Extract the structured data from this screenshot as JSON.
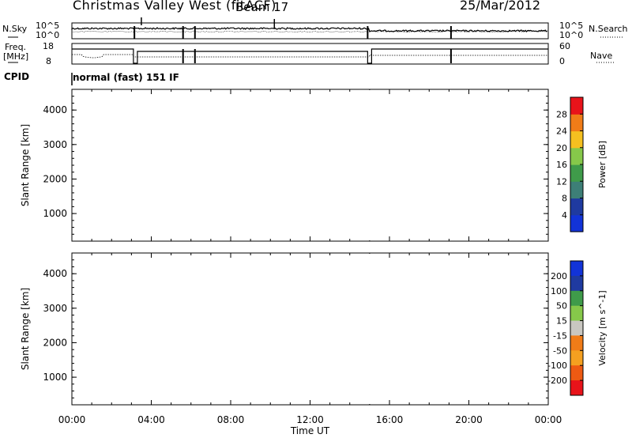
{
  "header": {
    "title": "Christmas Valley West (fitACF)",
    "beam": "Beam 17",
    "date": "25/Mar/2012"
  },
  "panels": {
    "nsky": {
      "label": "N.Sky",
      "ticks": [
        "10^5",
        "10^0"
      ]
    },
    "nsearch": {
      "label": "N.Search",
      "ticks": [
        "10^5",
        "10^0"
      ]
    },
    "freq": {
      "label_line1": "Freq.",
      "label_line2": "[MHz]",
      "ticks": [
        "18",
        "8"
      ]
    },
    "nave": {
      "label": "Nave",
      "ticks": [
        "60",
        "0"
      ]
    },
    "cpid": {
      "label": "CPID",
      "mode": "normal (fast) 151 IF"
    }
  },
  "colors": {
    "red": "#e8131a",
    "orange": "#f07c18",
    "yellow": "#f5c020",
    "green_light": "#86c84a",
    "green": "#3f9b4a",
    "teal": "#3d7f77",
    "navy": "#1f3aa0",
    "blue": "#1233d8",
    "gray": "#c9c7c1"
  },
  "chart_data": [
    {
      "type": "heatmap",
      "title": "",
      "xlabel": "",
      "ylabel": "Slant Range [km]",
      "ylim": [
        200,
        4600
      ],
      "yticks": [
        "1000",
        "2000",
        "3000",
        "4000"
      ],
      "xlim": [
        0,
        24
      ],
      "colorbar": {
        "label": "Power [dB]",
        "ticks": [
          "4",
          "8",
          "12",
          "16",
          "20",
          "24",
          "28"
        ],
        "colors": [
          "#1233d8",
          "#1f3aa0",
          "#3d7f77",
          "#3f9b4a",
          "#86c84a",
          "#f5c020",
          "#f07c18",
          "#e8131a"
        ]
      }
    },
    {
      "type": "heatmap",
      "title": "",
      "xlabel": "Time UT",
      "ylabel": "Slant Range [km]",
      "ylim": [
        200,
        4600
      ],
      "yticks": [
        "1000",
        "2000",
        "3000",
        "4000"
      ],
      "xlim": [
        0,
        24
      ],
      "xticks": [
        "00:00",
        "04:00",
        "08:00",
        "12:00",
        "16:00",
        "20:00",
        "00:00"
      ],
      "colorbar": {
        "label": "Velocity [m s^-1]",
        "ticks": [
          "200",
          "100",
          "50",
          "15",
          "-15",
          "-50",
          "-100",
          "-200"
        ],
        "colors": [
          "#1233d8",
          "#1f3aa0",
          "#3f9b4a",
          "#86c84a",
          "#c9c7c1",
          "#f07c18",
          "#f5a020",
          "#ee5a12",
          "#e8131a"
        ]
      }
    }
  ]
}
